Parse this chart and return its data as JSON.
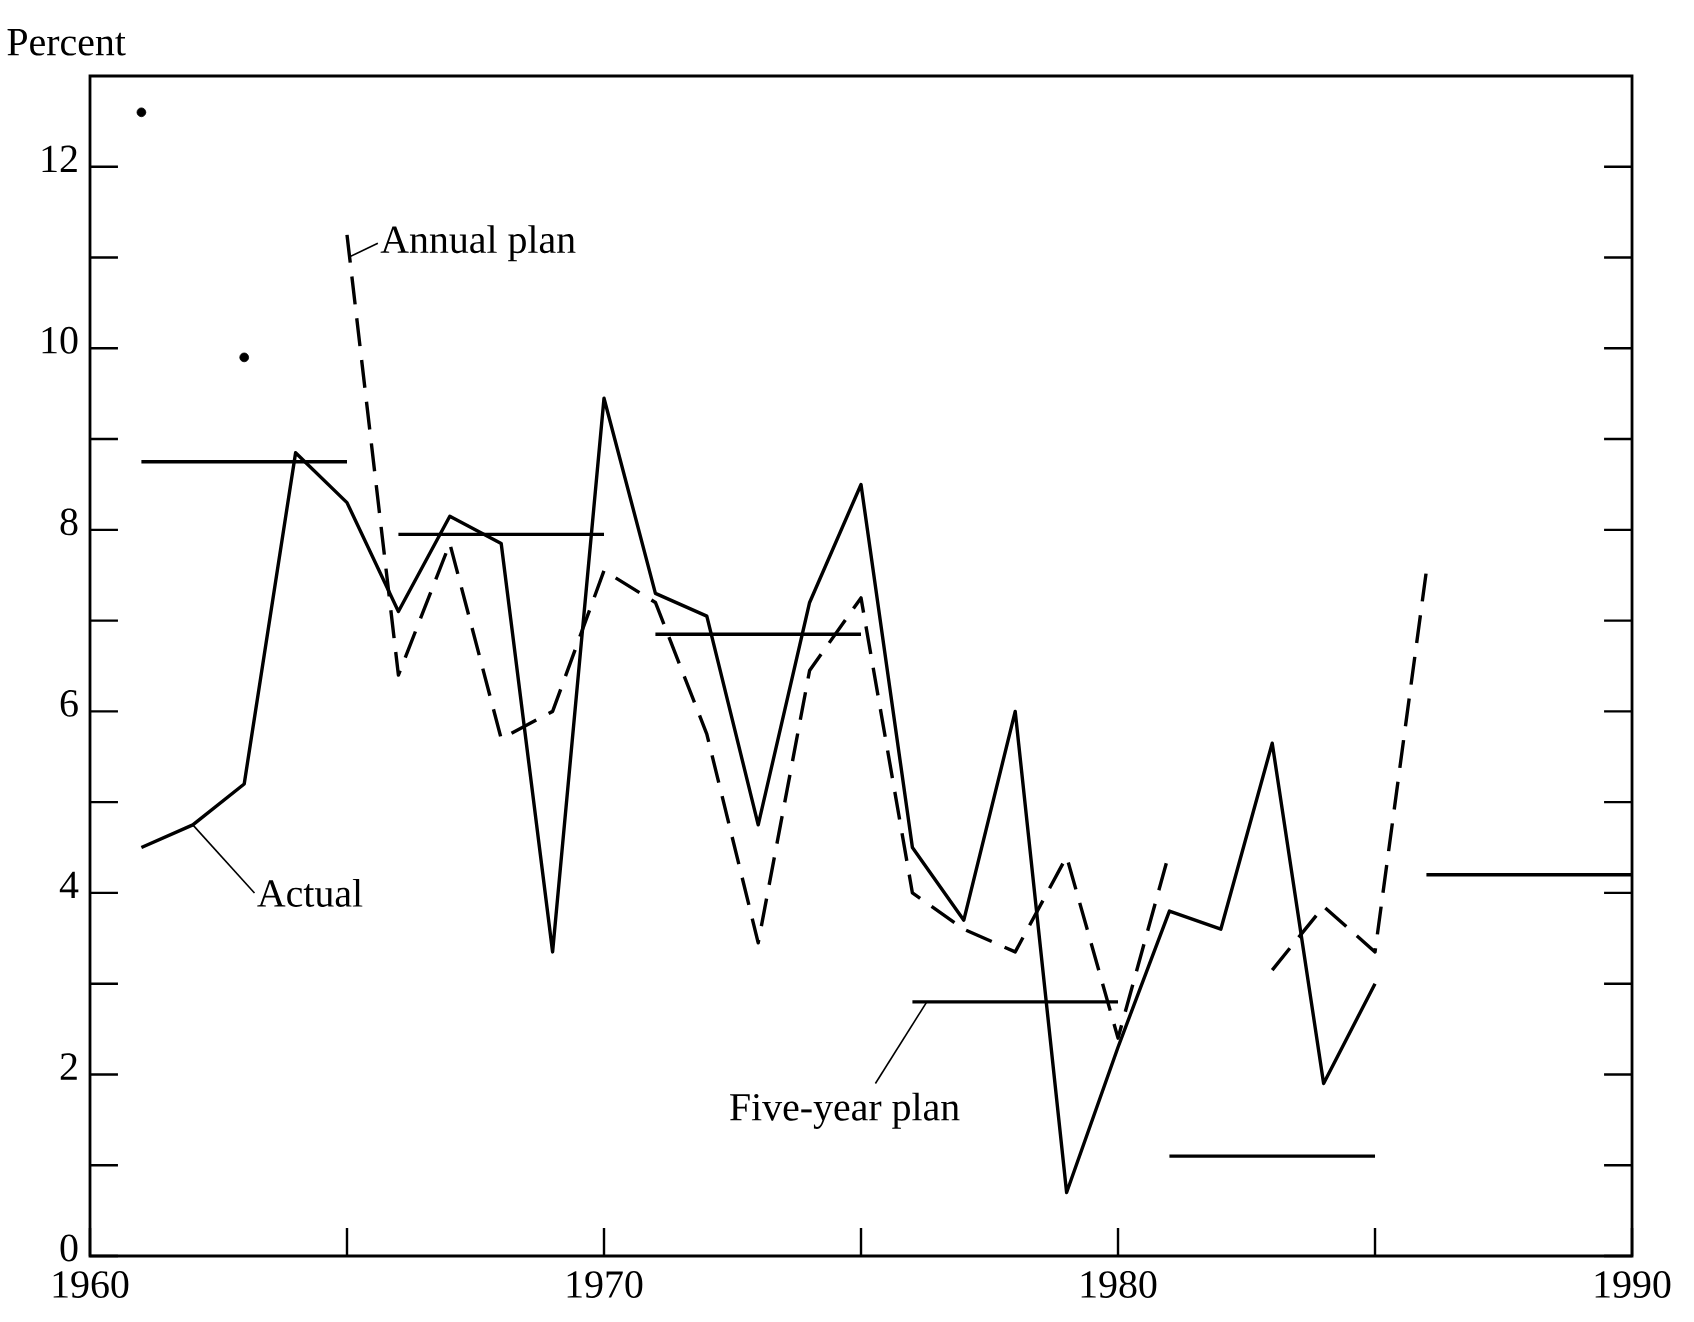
{
  "chart_data": {
    "type": "line",
    "ylabel": "Percent",
    "x": [
      1961,
      1962,
      1963,
      1964,
      1965,
      1966,
      1967,
      1968,
      1969,
      1970,
      1971,
      1972,
      1973,
      1974,
      1975,
      1976,
      1977,
      1978,
      1979,
      1980,
      1981,
      1982,
      1983,
      1984,
      1985
    ],
    "series": [
      {
        "name": "Actual",
        "color": "#000000",
        "line_style": "solid",
        "values": [
          4.5,
          4.75,
          5.2,
          8.85,
          8.3,
          7.1,
          8.15,
          7.85,
          3.35,
          9.45,
          7.3,
          7.05,
          4.75,
          7.2,
          8.5,
          4.5,
          3.7,
          6.0,
          0.7,
          2.3,
          3.8,
          3.6,
          5.65,
          1.9,
          3.0
        ]
      },
      {
        "name": "Annual plan",
        "color": "#000000",
        "line_style": "dashed",
        "x": [
          1961,
          1962,
          1963,
          1964,
          1965,
          1966,
          1967,
          1968,
          1969,
          1970,
          1971,
          1972,
          1973,
          1974,
          1975,
          1976,
          1977,
          1978,
          1979,
          1980,
          1981,
          1982,
          1983,
          1984,
          1985,
          1986
        ],
        "values": [
          12.6,
          null,
          9.9,
          null,
          11.25,
          6.4,
          7.85,
          5.7,
          6.0,
          7.55,
          7.2,
          5.75,
          3.45,
          6.45,
          7.25,
          4.0,
          3.6,
          3.35,
          4.4,
          2.4,
          4.45,
          null,
          3.15,
          3.85,
          3.35,
          7.55
        ]
      },
      {
        "name": "Five-year plan",
        "color": "#000000",
        "line_style": "solid",
        "x": [
          1961,
          1965,
          1965.5,
          1966,
          1970,
          1970.5,
          1971,
          1975,
          1975.5,
          1976,
          1980,
          1980.5,
          1981,
          1985,
          1985.5,
          1986,
          1990
        ],
        "values": [
          8.75,
          8.75,
          null,
          7.95,
          7.95,
          null,
          6.85,
          6.85,
          null,
          2.8,
          2.8,
          null,
          1.1,
          1.1,
          null,
          4.2,
          4.2
        ]
      }
    ],
    "xlim": [
      1960,
      1990
    ],
    "xticks": [
      1960,
      {
        "value": 1965,
        "label": null
      },
      1970,
      {
        "value": 1975,
        "label": null
      },
      1980,
      {
        "value": 1985,
        "label": null
      },
      1990
    ],
    "ylim": [
      0,
      13
    ],
    "yticks": [
      0,
      {
        "value": 1,
        "label": null
      },
      2,
      {
        "value": 3,
        "label": null
      },
      4,
      {
        "value": 5,
        "label": null
      },
      6,
      {
        "value": 7,
        "label": null
      },
      8,
      {
        "value": 9,
        "label": null
      },
      10,
      {
        "value": 11,
        "label": null
      },
      12
    ],
    "grid": false,
    "legend": "bottom left"
  }
}
